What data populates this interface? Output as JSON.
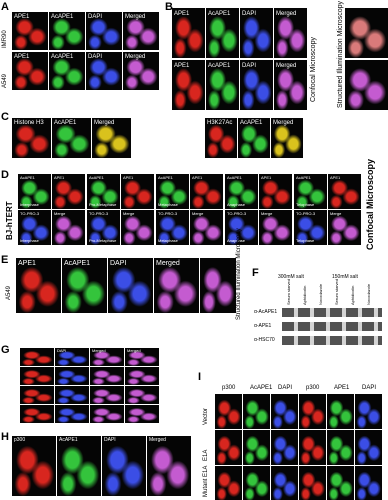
{
  "panels": {
    "a": {
      "letter": "A",
      "columns": [
        "APE1",
        "AcAPE1",
        "DAPI",
        "Merged"
      ],
      "rows": [
        "IMR90",
        "A549"
      ]
    },
    "b": {
      "letter": "B",
      "columns": [
        "APE1",
        "AcAPE1",
        "DAPI",
        "Merged"
      ],
      "rows": [
        "IMR90",
        "A549"
      ],
      "side_label": "Confocal Microscopy",
      "right_label": "Structured Illumination Microscopy"
    },
    "c": {
      "letter": "C",
      "group1": [
        "Histone H3",
        "AcAPE1",
        "Merged"
      ],
      "group2": [
        "H3K27Ac",
        "AcAPE1",
        "Merged"
      ]
    },
    "d": {
      "letter": "D",
      "cell_line": "BJ-hTERT",
      "side_label": "Confocal Microscopy",
      "top_labels": [
        "AcAPE1",
        "APE1"
      ],
      "bottom_labels": [
        "TO-PRO-3",
        "Merge"
      ],
      "phases": [
        "Interphase",
        "Pro-Metaphase",
        "Metaphase",
        "Anaphase",
        "Telophase"
      ]
    },
    "e": {
      "letter": "E",
      "cell_line": "A549",
      "columns": [
        "APE1",
        "AcAPE1",
        "DAPI",
        "Merged"
      ],
      "side_label": "Structured Illumination Microscopy"
    },
    "f": {
      "letter": "F",
      "salt": [
        "300mM salt",
        "150mM salt"
      ],
      "lanes": [
        "Serum starved",
        "Aphidicolin",
        "Nocodazole",
        "Serum starved",
        "Aphidicolin",
        "Nocodazole"
      ],
      "blots": [
        "α-AcAPE1",
        "α-APE1",
        "α-HSC70"
      ]
    },
    "g": {
      "letter": "G",
      "columns": [
        "DAPI",
        "Merged",
        "Merged"
      ]
    },
    "h": {
      "letter": "H",
      "columns": [
        "p300",
        "AcAPE1",
        "DAPI",
        "Merged"
      ]
    },
    "i": {
      "letter": "I",
      "columns": [
        "p300",
        "AcAPE1",
        "DAPI",
        "p300",
        "APE1",
        "DAPI"
      ],
      "rows": [
        "Vector",
        "E1A",
        "Mutant E1A"
      ]
    }
  }
}
